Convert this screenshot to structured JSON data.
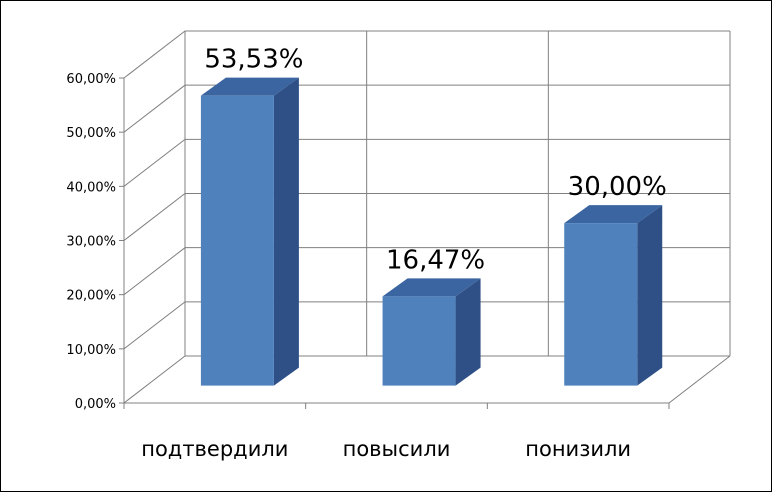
{
  "chart_data": {
    "type": "bar",
    "variant": "3d-column",
    "categories": [
      "подтвердили",
      "повысили",
      "понизили"
    ],
    "values": [
      53.53,
      16.47,
      30.0
    ],
    "data_labels": [
      "53,53%",
      "16,47%",
      "30,00%"
    ],
    "title": "",
    "xlabel": "",
    "ylabel": "",
    "ylim": [
      0,
      60
    ],
    "y_ticks": [
      0,
      10,
      20,
      30,
      40,
      50,
      60
    ],
    "y_tick_labels": [
      "0,00%",
      "10,00%",
      "20,00%",
      "30,00%",
      "40,00%",
      "50,00%",
      "60,00%"
    ],
    "grid": true,
    "legend": "none",
    "colors": {
      "bar_front": "#4f81bd",
      "bar_top": "#3b65a0",
      "bar_side": "#2f5086",
      "grid": "#808080"
    }
  }
}
